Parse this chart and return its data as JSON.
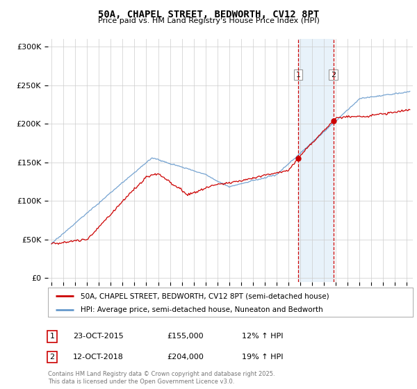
{
  "title": "50A, CHAPEL STREET, BEDWORTH, CV12 8PT",
  "subtitle": "Price paid vs. HM Land Registry's House Price Index (HPI)",
  "ylabel_ticks": [
    "£0",
    "£50K",
    "£100K",
    "£150K",
    "£200K",
    "£250K",
    "£300K"
  ],
  "ytick_values": [
    0,
    50000,
    100000,
    150000,
    200000,
    250000,
    300000
  ],
  "ylim": [
    -5000,
    310000
  ],
  "xlim_start": 1994.7,
  "xlim_end": 2025.5,
  "line1_color": "#cc0000",
  "line2_color": "#6699cc",
  "background_color": "#ffffff",
  "shade_color": "#d6e8f7",
  "vline1_color": "#cc0000",
  "vline2_color": "#cc0000",
  "marker1_date": 2015.82,
  "marker2_date": 2018.79,
  "marker1_price": 155000,
  "marker2_price": 204000,
  "legend1": "50A, CHAPEL STREET, BEDWORTH, CV12 8PT (semi-detached house)",
  "legend2": "HPI: Average price, semi-detached house, Nuneaton and Bedworth",
  "footer1": "Contains HM Land Registry data © Crown copyright and database right 2025.",
  "footer2": "This data is licensed under the Open Government Licence v3.0.",
  "table_rows": [
    {
      "num": "1",
      "date": "23-OCT-2015",
      "price": "£155,000",
      "hpi": "12% ↑ HPI"
    },
    {
      "num": "2",
      "date": "12-OCT-2018",
      "price": "£204,000",
      "hpi": "19% ↑ HPI"
    }
  ]
}
